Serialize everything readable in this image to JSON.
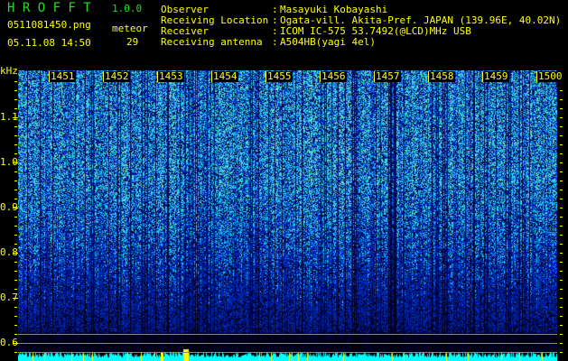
{
  "header": {
    "title": "H R O F F T",
    "version": "1.0.0",
    "filename": "0511081450.png",
    "datetime": "05.11.08 14:50",
    "meteor_label": "meteor",
    "meteor_count": "29"
  },
  "info": [
    {
      "label": "Observer",
      "value": "Masayuki Kobayashi"
    },
    {
      "label": "Receiving Location",
      "value": "Ogata-vill. Akita-Pref. JAPAN (139.96E, 40.02N)"
    },
    {
      "label": "Receiver",
      "value": "ICOM IC-575 53.7492(@LCD)MHz USB"
    },
    {
      "label": "Receiving antenna",
      "value": "A504HB(yagi 4el)"
    }
  ],
  "axes": {
    "y_unit": "kHz",
    "y_ticks": [
      "1.1",
      "1.0",
      "0.9",
      "0.8",
      "0.7",
      "0.6"
    ],
    "x_ticks": [
      "1451",
      "1452",
      "1453",
      "1454",
      "1455",
      "1456",
      "1457",
      "1458",
      "1459",
      "1500"
    ]
  },
  "colors": {
    "text": "#ffff00",
    "title": "#22dd22",
    "count_bar": "#00ffff",
    "background": "#000000"
  }
}
